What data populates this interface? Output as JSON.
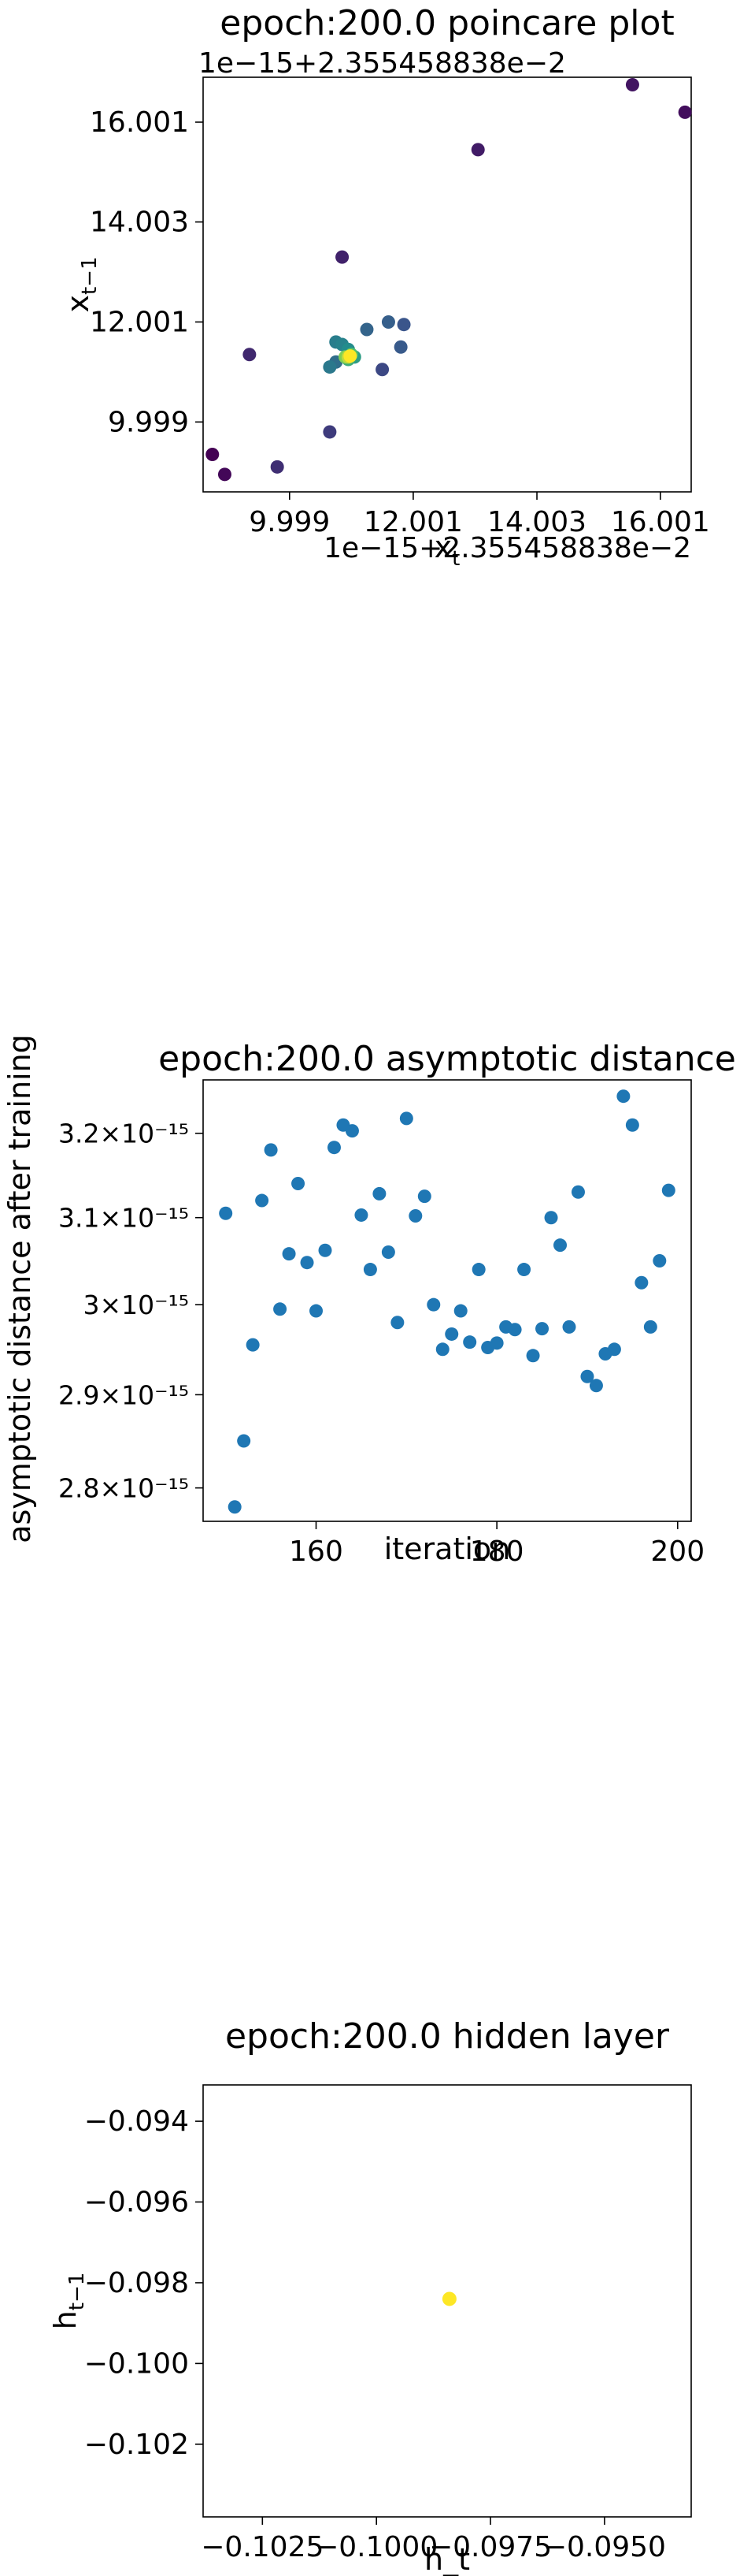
{
  "chart_data": [
    {
      "type": "scatter",
      "title": "epoch:200.0 poincare plot",
      "xlabel": "x_t",
      "ylabel": "x_{t-1}",
      "x_offset_text": "1e−15+2.355458838e−2",
      "y_offset_text": "1e−15+2.355458838e−2",
      "x_ticks": [
        9.999,
        12.001,
        14.003,
        16.001
      ],
      "x_tick_labels": [
        "9.999",
        "12.001",
        "14.003",
        "16.001"
      ],
      "y_ticks": [
        9.999,
        12.001,
        14.003,
        16.001
      ],
      "y_tick_labels": [
        "9.999",
        "12.001",
        "14.003",
        "16.001"
      ],
      "xlim": [
        8.6,
        16.5
      ],
      "ylim": [
        8.6,
        16.9
      ],
      "colormap": [
        "#440154",
        "#3b528b",
        "#21918c",
        "#5ec962",
        "#fde725"
      ],
      "points": [
        {
          "x": 8.75,
          "y": 9.35,
          "c": 0.0
        },
        {
          "x": 8.95,
          "y": 8.95,
          "c": 0.02
        },
        {
          "x": 16.4,
          "y": 16.2,
          "c": 0.04
        },
        {
          "x": 15.55,
          "y": 16.75,
          "c": 0.06
        },
        {
          "x": 13.05,
          "y": 15.45,
          "c": 0.08
        },
        {
          "x": 10.85,
          "y": 13.3,
          "c": 0.1
        },
        {
          "x": 9.35,
          "y": 11.35,
          "c": 0.12
        },
        {
          "x": 9.8,
          "y": 9.1,
          "c": 0.14
        },
        {
          "x": 10.65,
          "y": 9.8,
          "c": 0.18
        },
        {
          "x": 11.5,
          "y": 11.05,
          "c": 0.22
        },
        {
          "x": 11.85,
          "y": 11.95,
          "c": 0.26
        },
        {
          "x": 11.8,
          "y": 11.5,
          "c": 0.28
        },
        {
          "x": 11.6,
          "y": 12.0,
          "c": 0.3
        },
        {
          "x": 11.25,
          "y": 11.85,
          "c": 0.32
        },
        {
          "x": 10.75,
          "y": 11.2,
          "c": 0.36
        },
        {
          "x": 10.65,
          "y": 11.1,
          "c": 0.4
        },
        {
          "x": 10.75,
          "y": 11.6,
          "c": 0.42
        },
        {
          "x": 10.85,
          "y": 11.55,
          "c": 0.44
        },
        {
          "x": 10.95,
          "y": 11.45,
          "c": 0.48
        },
        {
          "x": 11.05,
          "y": 11.3,
          "c": 0.55
        },
        {
          "x": 10.95,
          "y": 11.25,
          "c": 0.62
        },
        {
          "x": 11.0,
          "y": 11.35,
          "c": 0.7
        },
        {
          "x": 10.9,
          "y": 11.3,
          "c": 0.8
        },
        {
          "x": 10.95,
          "y": 11.3,
          "c": 0.9
        },
        {
          "x": 10.98,
          "y": 11.32,
          "c": 1.0
        }
      ]
    },
    {
      "type": "scatter",
      "title": "epoch:200.0 asymptotic distance",
      "xlabel": "iteration",
      "ylabel": "asymptotic distance after training",
      "y_scale": "log",
      "x_ticks": [
        160,
        180,
        200
      ],
      "x_tick_labels": [
        "160",
        "180",
        "200"
      ],
      "y_ticks": [
        2.8e-15,
        2.9e-15,
        3e-15,
        3.1e-15,
        3.2e-15
      ],
      "y_tick_labels": [
        "2.8×10⁻¹⁵",
        "2.9×10⁻¹⁵",
        "3×10⁻¹⁵",
        "3.1×10⁻¹⁵",
        "3.2×10⁻¹⁵"
      ],
      "xlim": [
        147.5,
        201.5
      ],
      "ylim": [
        2.765e-15,
        3.265e-15
      ],
      "color": "#1f77b4",
      "x": [
        150,
        151,
        152,
        153,
        154,
        155,
        156,
        157,
        158,
        159,
        160,
        161,
        162,
        163,
        164,
        165,
        166,
        167,
        168,
        169,
        170,
        171,
        172,
        173,
        174,
        175,
        176,
        177,
        178,
        179,
        180,
        181,
        182,
        183,
        184,
        185,
        186,
        187,
        188,
        189,
        190,
        191,
        192,
        193,
        194,
        195,
        196,
        197,
        198,
        199
      ],
      "y": [
        3.105e-15,
        2.78e-15,
        2.85e-15,
        2.955e-15,
        3.12e-15,
        3.18e-15,
        2.995e-15,
        3.058e-15,
        3.14e-15,
        3.048e-15,
        2.993e-15,
        3.062e-15,
        3.183e-15,
        3.21e-15,
        3.203e-15,
        3.103e-15,
        3.04e-15,
        3.128e-15,
        3.06e-15,
        2.98e-15,
        3.218e-15,
        3.102e-15,
        3.125e-15,
        3e-15,
        2.95e-15,
        2.967e-15,
        2.993e-15,
        2.958e-15,
        3.04e-15,
        2.952e-15,
        2.957e-15,
        2.975e-15,
        2.972e-15,
        3.04e-15,
        2.943e-15,
        2.973e-15,
        3.1e-15,
        3.068e-15,
        2.975e-15,
        3.13e-15,
        2.92e-15,
        2.91e-15,
        2.945e-15,
        2.95e-15,
        3.245e-15,
        3.21e-15,
        3.025e-15,
        2.975e-15,
        3.05e-15,
        3.132e-15
      ]
    },
    {
      "type": "scatter",
      "title": "epoch:200.0 hidden layer",
      "xlabel": "h_t",
      "ylabel": "h_{t-1}",
      "x_ticks": [
        -0.1025,
        -0.1,
        -0.0975,
        -0.095
      ],
      "x_tick_labels": [
        "−0.1025",
        "−0.1000",
        "−0.0975",
        "−0.0950"
      ],
      "y_ticks": [
        -0.094,
        -0.096,
        -0.098,
        -0.1,
        -0.102
      ],
      "y_tick_labels": [
        "−0.094",
        "−0.096",
        "−0.098",
        "−0.100",
        "−0.102"
      ],
      "xlim": [
        -0.1038,
        -0.0931
      ],
      "ylim": [
        -0.1038,
        -0.0931
      ],
      "color": "#fde725",
      "points": [
        {
          "x": -0.0984,
          "y": -0.0984
        }
      ]
    }
  ]
}
